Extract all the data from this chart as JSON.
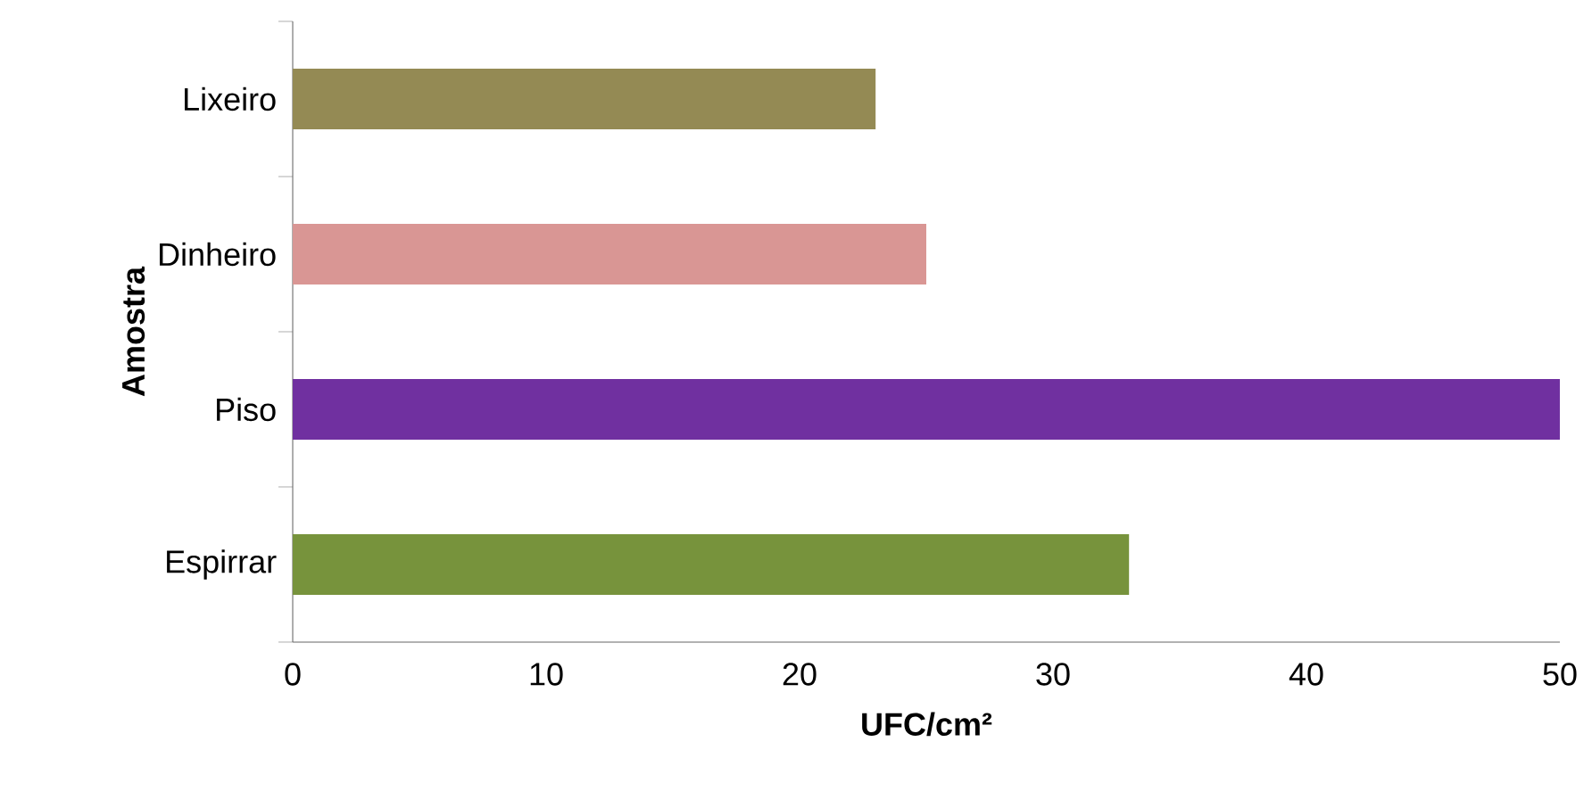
{
  "chart_data": {
    "type": "bar",
    "orientation": "horizontal",
    "xlabel": "UFC/cm²",
    "ylabel": "Amostra",
    "categories": [
      "Lixeiro",
      "Dinheiro",
      "Piso",
      "Espirrar"
    ],
    "values": [
      23,
      25,
      50,
      33
    ],
    "colors": [
      "#948a54",
      "#d99694",
      "#7030a0",
      "#77933c"
    ],
    "xlim": [
      0,
      50
    ],
    "xticks": [
      0,
      10,
      20,
      30,
      40,
      50
    ]
  }
}
